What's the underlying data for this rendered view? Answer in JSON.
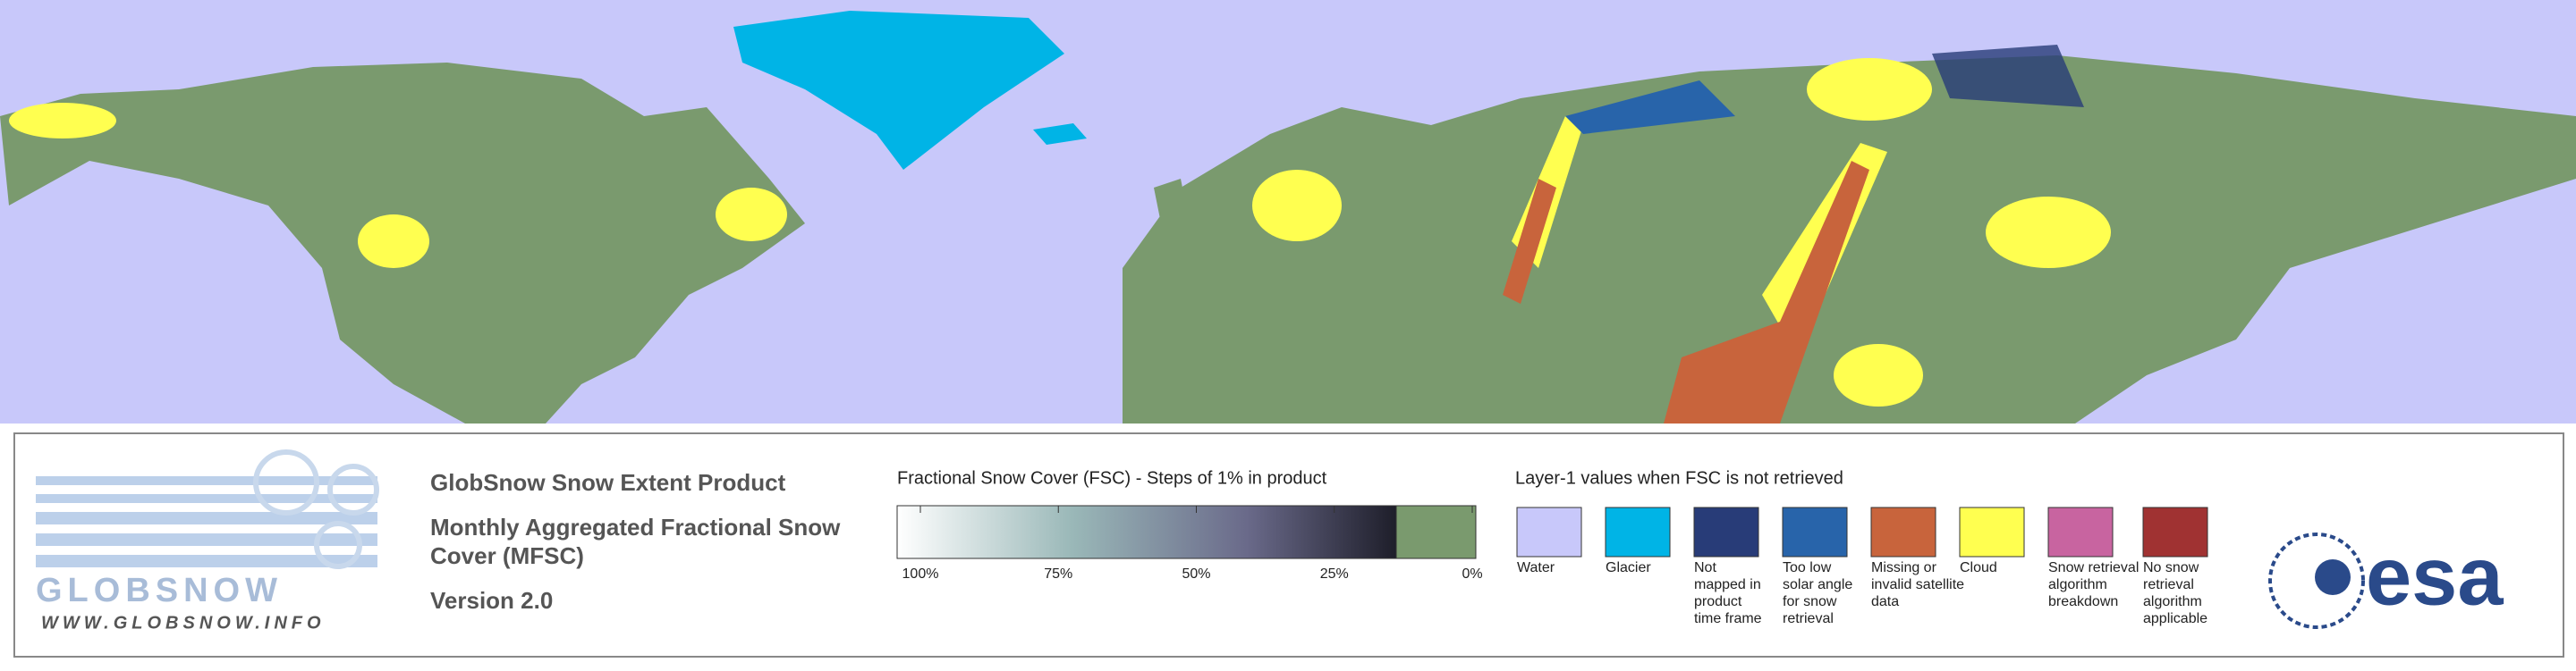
{
  "header": {
    "title": "GlobSnow Snow Extent Product",
    "subtitle_lines": [
      "Monthly Aggregated Fractional Snow",
      "Cover (MFSC)"
    ],
    "version": "Version 2.0"
  },
  "logo": {
    "wordmark": "GLOBSNOW",
    "url": "WWW.GLOBSNOW.INFO",
    "esa": "esa"
  },
  "fsc_legend": {
    "title": "Fractional Snow Cover (FSC) - Steps of 1% in product",
    "tick_labels": [
      "100%",
      "75%",
      "50%",
      "25%",
      "0%"
    ]
  },
  "layer1_legend": {
    "title": "Layer-1 values when FSC is not retrieved",
    "items": [
      {
        "color": "#c8c8fa",
        "label_lines": [
          "Water"
        ]
      },
      {
        "color": "#00b4e6",
        "label_lines": [
          "Glacier"
        ]
      },
      {
        "color": "#283c78",
        "label_lines": [
          "Not",
          "mapped in",
          "product",
          "time frame"
        ]
      },
      {
        "color": "#2864aa",
        "label_lines": [
          "Too low",
          "solar angle",
          "for snow",
          "retrieval"
        ]
      },
      {
        "color": "#c8643c",
        "label_lines": [
          "Missing or",
          "invalid satellite",
          "data"
        ]
      },
      {
        "color": "#ffff50",
        "label_lines": [
          "Cloud"
        ]
      },
      {
        "color": "#c864a0",
        "label_lines": [
          "Snow retrieval",
          "algorithm",
          "breakdown"
        ]
      },
      {
        "color": "#a03232",
        "label_lines": [
          "No snow",
          "retrieval",
          "algorithm",
          "applicable"
        ]
      }
    ]
  }
}
